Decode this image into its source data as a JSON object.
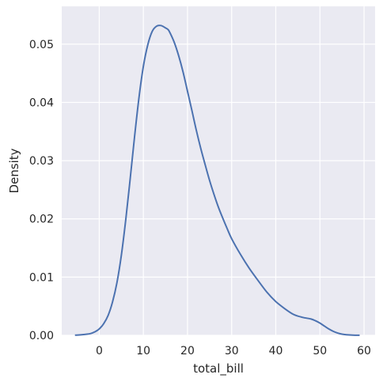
{
  "chart_data": {
    "type": "line",
    "title": "",
    "xlabel": "total_bill",
    "ylabel": "Density",
    "xlim": [
      -8.5,
      62.5
    ],
    "ylim": [
      0,
      0.0565
    ],
    "xticks": [
      0,
      10,
      20,
      30,
      40,
      50,
      60
    ],
    "xtick_labels": [
      "0",
      "10",
      "20",
      "30",
      "40",
      "50",
      "60"
    ],
    "yticks": [
      0,
      0.01,
      0.02,
      0.03,
      0.04,
      0.05
    ],
    "ytick_labels": [
      "0.00",
      "0.01",
      "0.02",
      "0.03",
      "0.04",
      "0.05"
    ],
    "grid": true,
    "legend": "none",
    "series": [
      {
        "color": "#4c72b0",
        "x": [
          -5.5,
          -4,
          -2,
          -1,
          0,
          1,
          2,
          3,
          4,
          5,
          6,
          7,
          8,
          9,
          10,
          11,
          12,
          13,
          14,
          15,
          15.6,
          16,
          17,
          18,
          19,
          20,
          21,
          22,
          23,
          24,
          25,
          26,
          27,
          28,
          29,
          30,
          32,
          34,
          36,
          38,
          40,
          42,
          44,
          46,
          48,
          49,
          50,
          51,
          52,
          53,
          54,
          55,
          56,
          57.5,
          59
        ],
        "y": [
          3e-05,
          0.0001,
          0.0003,
          0.0006,
          0.0011,
          0.002,
          0.0034,
          0.0057,
          0.009,
          0.0137,
          0.0198,
          0.0268,
          0.0341,
          0.0408,
          0.0462,
          0.0499,
          0.0522,
          0.0531,
          0.0532,
          0.0528,
          0.0525,
          0.052,
          0.0503,
          0.048,
          0.0452,
          0.0419,
          0.0386,
          0.0352,
          0.0321,
          0.0293,
          0.0266,
          0.0242,
          0.022,
          0.0201,
          0.0183,
          0.0166,
          0.0139,
          0.0115,
          0.0094,
          0.0074,
          0.0058,
          0.0046,
          0.0036,
          0.0031,
          0.0028,
          0.0025,
          0.0021,
          0.0016,
          0.0011,
          0.0007,
          0.0004,
          0.0002,
          0.0001,
          3e-05,
          1e-05
        ]
      }
    ]
  }
}
